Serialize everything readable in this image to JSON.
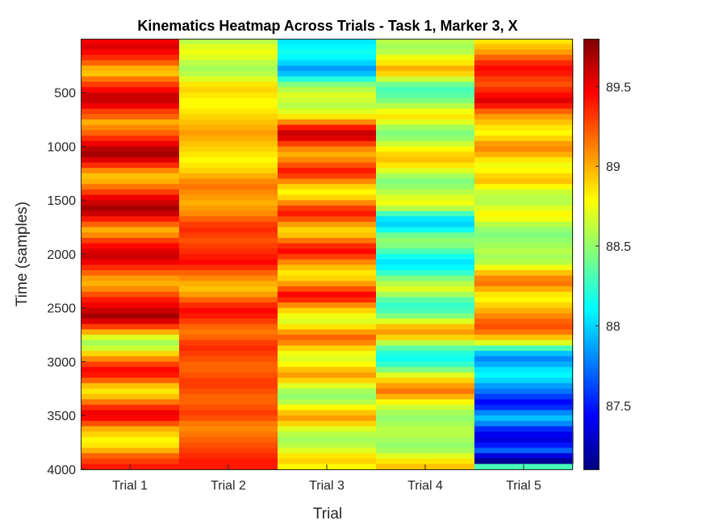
{
  "chart_data": {
    "type": "heatmap",
    "title": "Kinematics Heatmap Across Trials - Task 1, Marker 3, X",
    "xlabel": "Trial",
    "ylabel": "Time (samples)",
    "x_categories": [
      "Trial 1",
      "Trial 2",
      "Trial 3",
      "Trial 4",
      "Trial 5"
    ],
    "y_range": [
      1,
      4000
    ],
    "y_ticks": [
      500,
      1000,
      1500,
      2000,
      2500,
      3000,
      3500,
      4000
    ],
    "colormap": "jet",
    "clim": [
      87.1,
      89.8
    ],
    "colorbar_ticks": [
      87.5,
      88,
      88.5,
      89,
      89.5
    ],
    "bin_size_samples": 50,
    "series": [
      {
        "name": "Trial 1",
        "values": [
          89.5,
          89.55,
          89.45,
          89.35,
          89.2,
          89.0,
          88.95,
          89.15,
          89.3,
          89.45,
          89.6,
          89.6,
          89.5,
          89.3,
          89.2,
          89.0,
          89.1,
          89.2,
          89.35,
          89.5,
          89.65,
          89.7,
          89.55,
          89.35,
          89.1,
          88.95,
          89.0,
          89.15,
          89.3,
          89.5,
          89.6,
          89.7,
          89.6,
          89.4,
          89.2,
          89.0,
          89.1,
          89.3,
          89.45,
          89.55,
          89.6,
          89.5,
          89.35,
          89.2,
          89.05,
          89.0,
          89.1,
          89.25,
          89.4,
          89.5,
          89.6,
          89.7,
          89.55,
          89.3,
          89.0,
          88.7,
          88.55,
          88.65,
          88.9,
          89.1,
          89.3,
          89.45,
          89.4,
          89.2,
          88.95,
          88.85,
          88.95,
          89.15,
          89.35,
          89.5,
          89.45,
          89.25,
          89.0,
          88.9,
          88.8,
          88.85,
          89.0,
          89.2,
          89.3,
          89.4
        ]
      },
      {
        "name": "Trial 2",
        "values": [
          88.6,
          88.7,
          88.75,
          88.7,
          88.6,
          88.55,
          88.6,
          88.7,
          88.85,
          88.9,
          88.85,
          88.8,
          88.8,
          88.85,
          88.9,
          88.95,
          89.0,
          89.05,
          89.0,
          88.95,
          88.9,
          88.85,
          88.8,
          88.85,
          88.9,
          89.0,
          89.1,
          89.15,
          89.1,
          89.05,
          89.0,
          89.05,
          89.1,
          89.2,
          89.3,
          89.35,
          89.3,
          89.25,
          89.3,
          89.35,
          89.4,
          89.45,
          89.35,
          89.2,
          89.1,
          89.0,
          88.95,
          89.05,
          89.2,
          89.35,
          89.45,
          89.4,
          89.3,
          89.2,
          89.15,
          89.2,
          89.3,
          89.35,
          89.3,
          89.25,
          89.2,
          89.2,
          89.25,
          89.3,
          89.3,
          89.25,
          89.2,
          89.2,
          89.25,
          89.3,
          89.25,
          89.15,
          89.1,
          89.15,
          89.2,
          89.25,
          89.3,
          89.35,
          89.4,
          89.4
        ]
      },
      {
        "name": "Trial 3",
        "values": [
          88.05,
          88.1,
          88.15,
          88.1,
          88.0,
          87.85,
          87.95,
          88.2,
          88.45,
          88.6,
          88.7,
          88.65,
          88.6,
          88.7,
          88.85,
          89.1,
          89.4,
          89.6,
          89.55,
          89.3,
          89.1,
          89.0,
          89.1,
          89.25,
          89.4,
          89.3,
          89.1,
          88.9,
          88.8,
          88.9,
          89.1,
          89.3,
          89.4,
          89.25,
          89.05,
          88.9,
          88.95,
          89.15,
          89.35,
          89.45,
          89.3,
          89.1,
          88.95,
          88.85,
          88.9,
          89.05,
          89.25,
          89.45,
          89.35,
          89.1,
          88.9,
          88.75,
          88.7,
          88.85,
          89.05,
          89.2,
          89.1,
          88.9,
          88.75,
          88.7,
          88.8,
          88.95,
          89.05,
          88.9,
          88.7,
          88.55,
          88.5,
          88.6,
          88.8,
          88.95,
          89.05,
          88.9,
          88.7,
          88.6,
          88.55,
          88.6,
          88.7,
          88.85,
          88.9,
          88.8
        ]
      },
      {
        "name": "Trial 4",
        "values": [
          88.6,
          88.55,
          88.6,
          88.75,
          88.85,
          89.0,
          88.9,
          88.65,
          88.4,
          88.3,
          88.35,
          88.45,
          88.6,
          88.75,
          88.85,
          88.7,
          88.55,
          88.45,
          88.5,
          88.65,
          88.8,
          88.9,
          88.95,
          88.85,
          88.7,
          88.55,
          88.45,
          88.5,
          88.6,
          88.7,
          88.75,
          88.6,
          88.3,
          88.05,
          88.0,
          88.15,
          88.4,
          88.5,
          88.45,
          88.3,
          88.15,
          88.05,
          88.1,
          88.25,
          88.45,
          88.6,
          88.7,
          88.55,
          88.35,
          88.25,
          88.3,
          88.45,
          88.7,
          88.95,
          89.05,
          88.9,
          88.6,
          88.35,
          88.2,
          88.15,
          88.25,
          88.45,
          88.7,
          88.9,
          89.05,
          89.15,
          89.0,
          88.8,
          88.65,
          88.55,
          88.5,
          88.55,
          88.6,
          88.6,
          88.55,
          88.5,
          88.55,
          88.7,
          88.85,
          88.95
        ]
      },
      {
        "name": "Trial 5",
        "values": [
          88.85,
          88.95,
          89.05,
          89.2,
          89.35,
          89.45,
          89.4,
          89.3,
          89.25,
          89.35,
          89.45,
          89.55,
          89.4,
          89.2,
          89.05,
          88.95,
          88.85,
          88.8,
          88.9,
          89.05,
          89.1,
          89.0,
          88.85,
          88.75,
          88.8,
          88.9,
          88.95,
          88.8,
          88.65,
          88.6,
          88.6,
          88.7,
          88.8,
          88.75,
          88.6,
          88.5,
          88.45,
          88.5,
          88.55,
          88.6,
          88.55,
          88.6,
          88.75,
          88.95,
          89.1,
          89.15,
          89.0,
          88.85,
          88.8,
          88.9,
          89.0,
          89.1,
          89.2,
          89.25,
          89.15,
          88.95,
          88.7,
          88.3,
          87.95,
          87.8,
          87.9,
          88.05,
          88.1,
          88.0,
          87.85,
          87.75,
          87.6,
          87.45,
          87.55,
          87.8,
          87.95,
          87.8,
          87.55,
          87.4,
          87.35,
          87.5,
          87.7,
          87.35,
          87.15,
          88.3
        ]
      }
    ]
  }
}
